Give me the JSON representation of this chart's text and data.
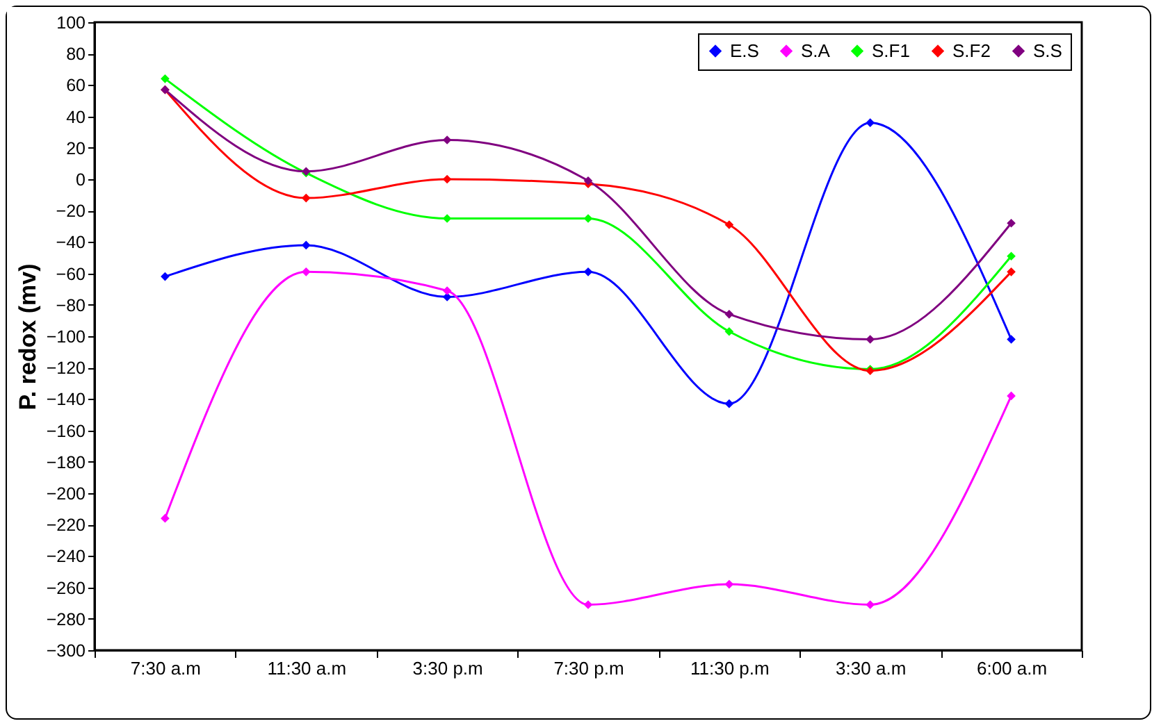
{
  "chart_data": {
    "type": "line",
    "ylabel": "P. redox (mv)",
    "categories": [
      "7:30 a.m",
      "11:30 a.m",
      "3:30 p.m",
      "7:30 p.m",
      "11:30 p.m",
      "3:30 a.m",
      "6:00 a.m"
    ],
    "series": [
      {
        "name": "E.S",
        "color": "#0000ff",
        "values": [
          -62,
          -42,
          -75,
          -59,
          -143,
          36,
          -102
        ]
      },
      {
        "name": "S.A",
        "color": "#ff00ff",
        "values": [
          -216,
          -59,
          -71,
          -271,
          -258,
          -271,
          -138
        ]
      },
      {
        "name": "S.F1",
        "color": "#00ff00",
        "values": [
          64,
          4,
          -25,
          -25,
          -97,
          -121,
          -49
        ]
      },
      {
        "name": "S.F2",
        "color": "#ff0000",
        "values": [
          57,
          -12,
          0,
          -3,
          -29,
          -122,
          -59
        ]
      },
      {
        "name": "S.S",
        "color": "#800080",
        "values": [
          57,
          5,
          25,
          -1,
          -86,
          -102,
          -28
        ]
      }
    ],
    "ylim": [
      -300,
      100
    ],
    "yticks": [
      -300,
      -280,
      -260,
      -240,
      -220,
      -200,
      -180,
      -160,
      -140,
      -120,
      -100,
      -80,
      -60,
      -40,
      -20,
      0,
      20,
      40,
      60,
      80,
      100
    ],
    "legend": "top right",
    "marker": "diamond",
    "line_style": "solid",
    "grid": false
  }
}
